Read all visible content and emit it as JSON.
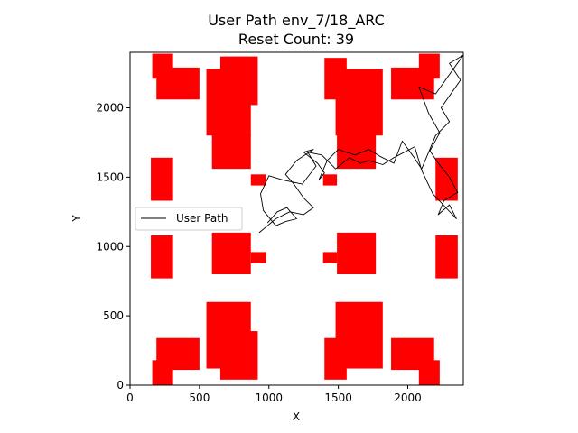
{
  "chart_data": {
    "type": "line",
    "title": "User Path env_7/18_ARC",
    "subtitle": "Reset Count: 39",
    "xlabel": "X",
    "ylabel": "Y",
    "xlim": [
      0,
      2400
    ],
    "ylim": [
      0,
      2400
    ],
    "x_ticks": [
      0,
      500,
      1000,
      1500,
      2000
    ],
    "y_ticks": [
      0,
      500,
      1000,
      1500,
      2000
    ],
    "grid": false,
    "legend": {
      "location": "center-left",
      "entries": [
        "User Path"
      ]
    },
    "obstacle_color": "#ff0000",
    "path_color": "#000000",
    "obstacles": [
      [
        150,
        1330,
        160,
        310
      ],
      [
        150,
        770,
        160,
        310
      ],
      [
        2200,
        1330,
        160,
        310
      ],
      [
        2200,
        770,
        160,
        310
      ],
      [
        590,
        1560,
        280,
        250
      ],
      [
        590,
        800,
        280,
        300
      ],
      [
        870,
        1440,
        110,
        80
      ],
      [
        870,
        880,
        110,
        80
      ],
      [
        1490,
        1560,
        280,
        250
      ],
      [
        1490,
        800,
        280,
        300
      ],
      [
        1390,
        1440,
        100,
        80
      ],
      [
        1390,
        880,
        100,
        80
      ],
      [
        550,
        1800,
        320,
        480
      ],
      [
        650,
        2020,
        270,
        350
      ],
      [
        1480,
        1800,
        340,
        480
      ],
      [
        1400,
        2060,
        160,
        300
      ],
      [
        190,
        2060,
        310,
        230
      ],
      [
        160,
        2210,
        150,
        180
      ],
      [
        1880,
        2060,
        310,
        230
      ],
      [
        2080,
        2210,
        150,
        180
      ],
      [
        550,
        120,
        320,
        480
      ],
      [
        650,
        40,
        270,
        350
      ],
      [
        1480,
        120,
        340,
        480
      ],
      [
        1400,
        40,
        160,
        300
      ],
      [
        190,
        110,
        310,
        230
      ],
      [
        160,
        0,
        150,
        180
      ],
      [
        1880,
        110,
        310,
        230
      ],
      [
        2080,
        0,
        150,
        180
      ]
    ],
    "path": [
      [
        930,
        1100
      ],
      [
        1050,
        1200
      ],
      [
        1150,
        1250
      ],
      [
        1250,
        1230
      ],
      [
        1320,
        1280
      ],
      [
        1250,
        1350
      ],
      [
        1180,
        1450
      ],
      [
        1120,
        1520
      ],
      [
        1200,
        1620
      ],
      [
        1320,
        1700
      ],
      [
        1250,
        1680
      ],
      [
        1350,
        1600
      ],
      [
        1400,
        1530
      ],
      [
        1360,
        1480
      ],
      [
        1420,
        1620
      ],
      [
        1500,
        1700
      ],
      [
        1620,
        1660
      ],
      [
        1720,
        1700
      ],
      [
        1800,
        1650
      ],
      [
        1900,
        1600
      ],
      [
        1960,
        1760
      ],
      [
        2040,
        1650
      ],
      [
        2100,
        1560
      ],
      [
        2200,
        1800
      ],
      [
        2300,
        1900
      ],
      [
        2240,
        2000
      ],
      [
        2380,
        2200
      ],
      [
        2300,
        2320
      ],
      [
        2400,
        2380
      ],
      [
        2200,
        2100
      ],
      [
        2080,
        2150
      ],
      [
        2150,
        1960
      ],
      [
        2230,
        1820
      ],
      [
        2160,
        1690
      ],
      [
        2220,
        1600
      ],
      [
        2300,
        1500
      ],
      [
        2360,
        1390
      ],
      [
        2260,
        1330
      ],
      [
        2220,
        1230
      ],
      [
        2300,
        1300
      ],
      [
        2350,
        1200
      ],
      [
        2180,
        1380
      ],
      [
        2100,
        1550
      ],
      [
        2050,
        1720
      ],
      [
        1900,
        1640
      ],
      [
        1820,
        1590
      ],
      [
        1720,
        1620
      ],
      [
        1660,
        1600
      ],
      [
        1580,
        1640
      ],
      [
        1480,
        1560
      ],
      [
        1380,
        1660
      ],
      [
        1280,
        1680
      ],
      [
        1340,
        1580
      ],
      [
        1240,
        1450
      ],
      [
        1100,
        1480
      ],
      [
        1000,
        1510
      ],
      [
        940,
        1380
      ],
      [
        960,
        1260
      ],
      [
        1050,
        1150
      ],
      [
        1120,
        1180
      ],
      [
        1200,
        1200
      ],
      [
        1130,
        1280
      ],
      [
        1060,
        1250
      ],
      [
        990,
        1170
      ]
    ]
  }
}
